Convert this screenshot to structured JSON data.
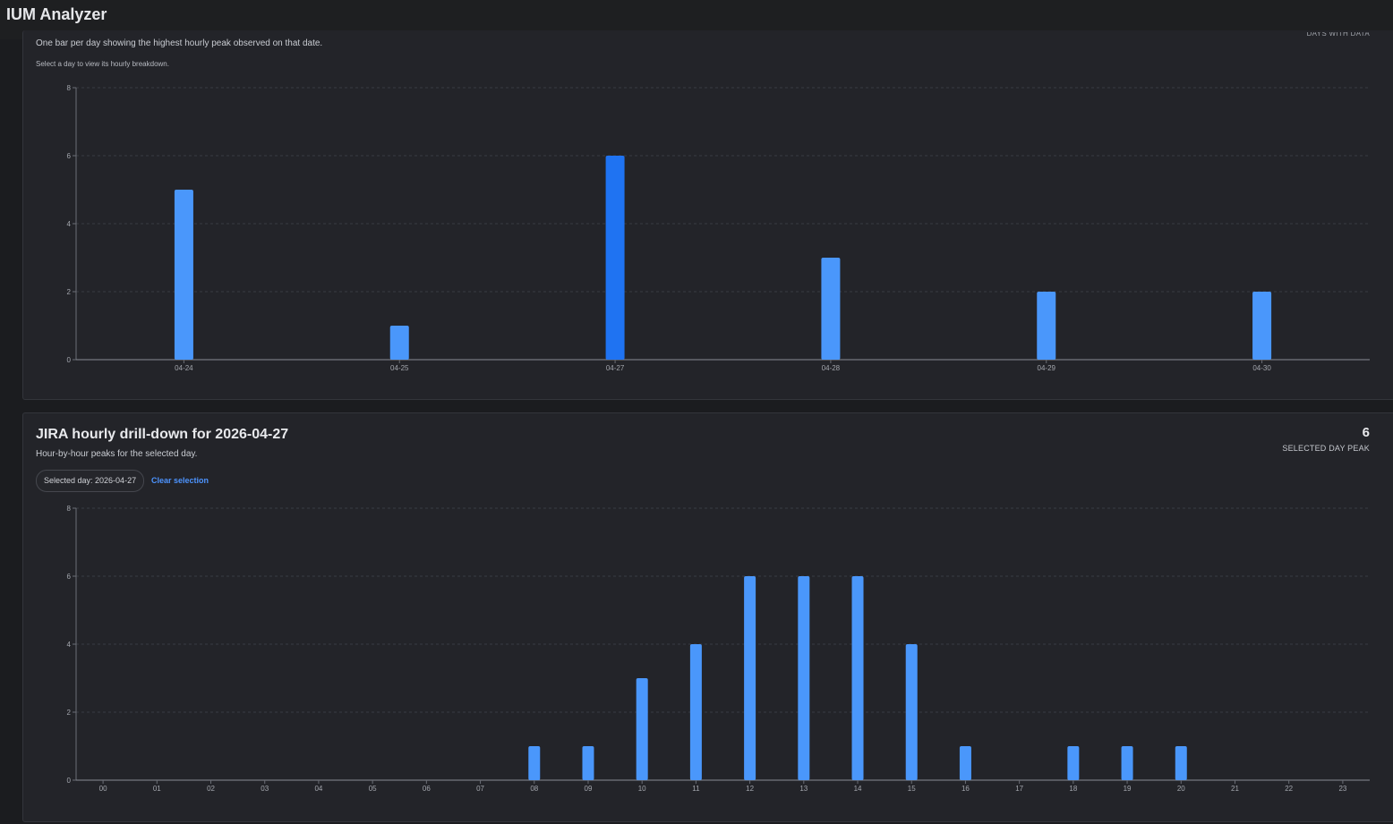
{
  "app": {
    "title": "IUM Analyzer"
  },
  "daily": {
    "subtitle": "One bar per day showing the highest hourly peak observed on that date.",
    "hint": "Select a day to view its hourly breakdown.",
    "corner_label": "DAYS WITH DATA"
  },
  "hourly": {
    "title": "JIRA hourly drill-down for 2026-04-27",
    "subtitle": "Hour-by-hour peaks for the selected day.",
    "stat_value": "6",
    "stat_label": "SELECTED DAY PEAK",
    "selected_chip": "Selected day: 2026-04-27",
    "clear_label": "Clear selection"
  },
  "colors": {
    "bar": "#4a97fb",
    "bar_selected": "#1f73f2",
    "accent_link": "#4d94ff"
  },
  "chart_data": [
    {
      "type": "bar",
      "categories": [
        "04-24",
        "04-25",
        "04-27",
        "04-28",
        "04-29",
        "04-30"
      ],
      "values": [
        5,
        1,
        6,
        3,
        2,
        2
      ],
      "selected": "04-27",
      "ylim": [
        0,
        8
      ],
      "yticks": [
        0,
        2,
        4,
        6,
        8
      ],
      "grid": true
    },
    {
      "type": "bar",
      "categories": [
        "00",
        "01",
        "02",
        "03",
        "04",
        "05",
        "06",
        "07",
        "08",
        "09",
        "10",
        "11",
        "12",
        "13",
        "14",
        "15",
        "16",
        "17",
        "18",
        "19",
        "20",
        "21",
        "22",
        "23"
      ],
      "values": [
        0,
        0,
        0,
        0,
        0,
        0,
        0,
        0,
        1,
        1,
        3,
        4,
        6,
        6,
        6,
        4,
        1,
        0,
        1,
        1,
        1,
        0,
        0,
        0
      ],
      "ylim": [
        0,
        8
      ],
      "yticks": [
        0,
        2,
        4,
        6,
        8
      ],
      "grid": true
    }
  ]
}
